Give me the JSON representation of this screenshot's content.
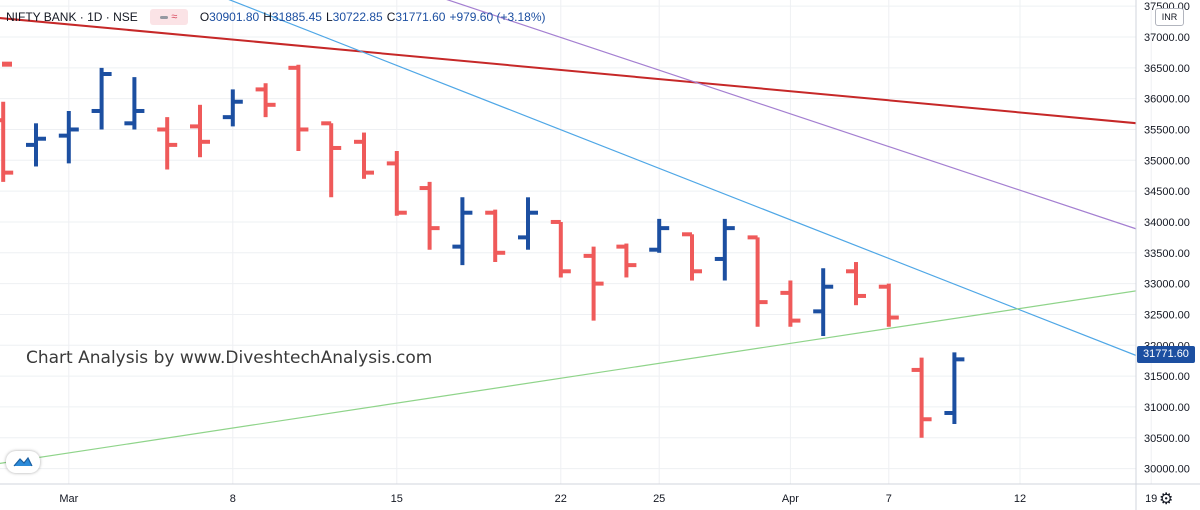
{
  "legend": {
    "symbol": "NIFTY BANK · 1D · NSE",
    "icon": "approx-equals-icon",
    "open_key": "O",
    "open": "30901.80",
    "high_key": "H",
    "high": "31885.45",
    "low_key": "L",
    "low": "30722.85",
    "close_key": "C",
    "close": "31771.60",
    "change": "+979.60 (+3.18%)"
  },
  "watermark": "Chart Analysis by www.DiveshtechAnalysis.com",
  "currency": "INR",
  "last_price": "31771.60",
  "colors": {
    "up": "#1c4fa1",
    "down": "#ef5a5a",
    "last_price_bg": "#1c4fa1",
    "trendline_red": "#c62828",
    "trendline_blue": "#4fa7e6",
    "trendline_purple": "#a47fd1",
    "trendline_green": "#8fd48a"
  },
  "icons": [
    "approx-equals-icon",
    "tradingview-logo-icon",
    "gear-icon"
  ],
  "chart_data": {
    "type": "ohlc",
    "yaxis_ticks": [
      "30000.00",
      "30500.00",
      "31000.00",
      "31500.00",
      "32000.00",
      "32500.00",
      "33000.00",
      "33500.00",
      "34000.00",
      "34500.00",
      "35000.00",
      "35500.00",
      "36000.00",
      "36500.00",
      "37000.00",
      "37500.00"
    ],
    "y_tick_values": [
      30000,
      30500,
      31000,
      31500,
      32000,
      32500,
      33000,
      33500,
      34000,
      34500,
      35000,
      35500,
      36000,
      36500,
      37000,
      37500
    ],
    "ylim": [
      29750,
      37600
    ],
    "xaxis_ticks": [
      {
        "label": "Mar",
        "day": 1
      },
      {
        "label": "8",
        "day": 6
      },
      {
        "label": "15",
        "day": 11
      },
      {
        "label": "22",
        "day": 16
      },
      {
        "label": "25",
        "day": 19
      },
      {
        "label": "Apr",
        "day": 23
      },
      {
        "label": "7",
        "day": 26
      },
      {
        "label": "12",
        "day": 30
      },
      {
        "label": "19",
        "day": 34
      }
    ],
    "bars": [
      {
        "o": 35650,
        "h": 35950,
        "l": 34650,
        "c": 34800
      },
      {
        "o": 35250,
        "h": 35600,
        "l": 34900,
        "c": 35350
      },
      {
        "o": 35400,
        "h": 35800,
        "l": 34950,
        "c": 35500
      },
      {
        "o": 35800,
        "h": 36500,
        "l": 35500,
        "c": 36400
      },
      {
        "o": 35600,
        "h": 36350,
        "l": 35500,
        "c": 35800
      },
      {
        "o": 35500,
        "h": 35700,
        "l": 34850,
        "c": 35250
      },
      {
        "o": 35550,
        "h": 35900,
        "l": 35050,
        "c": 35300
      },
      {
        "o": 35700,
        "h": 36150,
        "l": 35550,
        "c": 35950
      },
      {
        "o": 36150,
        "h": 36250,
        "l": 35700,
        "c": 35900
      },
      {
        "o": 36500,
        "h": 36550,
        "l": 35150,
        "c": 35500
      },
      {
        "o": 35600,
        "h": 35600,
        "l": 34400,
        "c": 35200
      },
      {
        "o": 35300,
        "h": 35450,
        "l": 34700,
        "c": 34800
      },
      {
        "o": 34950,
        "h": 35150,
        "l": 34100,
        "c": 34150
      },
      {
        "o": 34550,
        "h": 34650,
        "l": 33550,
        "c": 33900
      },
      {
        "o": 33600,
        "h": 34400,
        "l": 33300,
        "c": 34150
      },
      {
        "o": 34150,
        "h": 34200,
        "l": 33350,
        "c": 33500
      },
      {
        "o": 33750,
        "h": 34400,
        "l": 33550,
        "c": 34150
      },
      {
        "o": 34000,
        "h": 34000,
        "l": 33100,
        "c": 33200
      },
      {
        "o": 33450,
        "h": 33600,
        "l": 32400,
        "c": 33000
      },
      {
        "o": 33600,
        "h": 33650,
        "l": 33100,
        "c": 33300
      },
      {
        "o": 33550,
        "h": 34050,
        "l": 33500,
        "c": 33900
      },
      {
        "o": 33800,
        "h": 33800,
        "l": 33050,
        "c": 33200
      },
      {
        "o": 33400,
        "h": 34050,
        "l": 33050,
        "c": 33900
      },
      {
        "o": 33750,
        "h": 33750,
        "l": 32300,
        "c": 32700
      },
      {
        "o": 32850,
        "h": 33050,
        "l": 32300,
        "c": 32400
      },
      {
        "o": 32550,
        "h": 33250,
        "l": 32150,
        "c": 32950
      },
      {
        "o": 33200,
        "h": 33350,
        "l": 32650,
        "c": 32800
      },
      {
        "o": 32950,
        "h": 33000,
        "l": 32300,
        "c": 32450
      },
      {
        "o": 31600,
        "h": 31800,
        "l": 30500,
        "c": 30800
      },
      {
        "o": 30901.8,
        "h": 31885.45,
        "l": 30722.85,
        "c": 31771.6
      }
    ],
    "trendlines": [
      {
        "name": "red",
        "color": "#c62828",
        "p1": {
          "day": -4,
          "price": 37450
        },
        "p2": {
          "day": 35,
          "price": 35530
        }
      },
      {
        "name": "blue",
        "color": "#4fa7e6",
        "p1": {
          "day": 4,
          "price": 38000
        },
        "p2": {
          "day": 35,
          "price": 31530
        }
      },
      {
        "name": "purple",
        "color": "#a47fd1",
        "p1": {
          "day": 12,
          "price": 37700
        },
        "p2": {
          "day": 35,
          "price": 33630
        }
      },
      {
        "name": "green",
        "color": "#8fd48a",
        "p1": {
          "day": -4,
          "price": 29850
        },
        "p2": {
          "day": 35,
          "price": 33000
        }
      }
    ]
  }
}
